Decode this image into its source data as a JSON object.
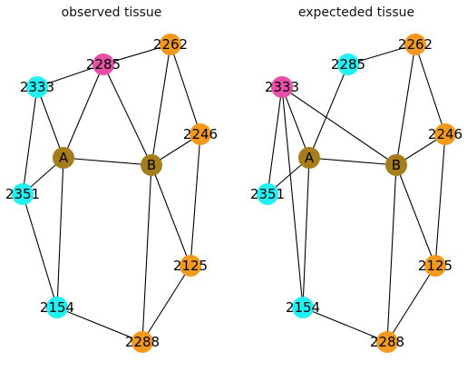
{
  "panels": [
    {
      "title": "observed tissue",
      "nodes": [
        {
          "id": "2262",
          "label": "2262",
          "color": "#f39a1e"
        },
        {
          "id": "2285",
          "label": "2285",
          "color": "#e84fa8"
        },
        {
          "id": "2333",
          "label": "2333",
          "color": "#22f0f3"
        },
        {
          "id": "2246",
          "label": "2246",
          "color": "#f39a1e"
        },
        {
          "id": "A",
          "label": "A",
          "color": "#a57d1b"
        },
        {
          "id": "B",
          "label": "B",
          "color": "#a57d1b"
        },
        {
          "id": "2351",
          "label": "2351",
          "color": "#22f0f3"
        },
        {
          "id": "2125",
          "label": "2125",
          "color": "#f39a1e"
        },
        {
          "id": "2154",
          "label": "2154",
          "color": "#22f0f3"
        },
        {
          "id": "2288",
          "label": "2288",
          "color": "#f39a1e"
        }
      ],
      "edges": [
        [
          "2285",
          "2262"
        ],
        [
          "2285",
          "2333"
        ],
        [
          "2285",
          "A"
        ],
        [
          "2285",
          "B"
        ],
        [
          "2333",
          "A"
        ],
        [
          "2333",
          "2351"
        ],
        [
          "2262",
          "B"
        ],
        [
          "2262",
          "2246"
        ],
        [
          "A",
          "B"
        ],
        [
          "A",
          "2351"
        ],
        [
          "A",
          "2154"
        ],
        [
          "B",
          "2246"
        ],
        [
          "B",
          "2125"
        ],
        [
          "B",
          "2288"
        ],
        [
          "2246",
          "2125"
        ],
        [
          "2351",
          "2154"
        ],
        [
          "2125",
          "2288"
        ],
        [
          "2154",
          "2288"
        ]
      ]
    },
    {
      "title": "expecteded tissue",
      "nodes": [
        {
          "id": "2262",
          "label": "2262",
          "color": "#f39a1e"
        },
        {
          "id": "2285",
          "label": "2285",
          "color": "#22f0f3"
        },
        {
          "id": "2333",
          "label": "2333",
          "color": "#e84fa8"
        },
        {
          "id": "2246",
          "label": "2246",
          "color": "#f39a1e"
        },
        {
          "id": "A",
          "label": "A",
          "color": "#a57d1b"
        },
        {
          "id": "B",
          "label": "B",
          "color": "#a57d1b"
        },
        {
          "id": "2351",
          "label": "2351",
          "color": "#22f0f3"
        },
        {
          "id": "2125",
          "label": "2125",
          "color": "#f39a1e"
        },
        {
          "id": "2154",
          "label": "2154",
          "color": "#22f0f3"
        },
        {
          "id": "2288",
          "label": "2288",
          "color": "#f39a1e"
        }
      ],
      "edges": [
        [
          "2285",
          "2262"
        ],
        [
          "2285",
          "A"
        ],
        [
          "2333",
          "B"
        ],
        [
          "2333",
          "A"
        ],
        [
          "2333",
          "2351"
        ],
        [
          "2333",
          "2154"
        ],
        [
          "2262",
          "B"
        ],
        [
          "2262",
          "2246"
        ],
        [
          "A",
          "B"
        ],
        [
          "A",
          "2351"
        ],
        [
          "A",
          "2154"
        ],
        [
          "B",
          "2246"
        ],
        [
          "B",
          "2125"
        ],
        [
          "B",
          "2288"
        ],
        [
          "2246",
          "2125"
        ],
        [
          "2154",
          "2288"
        ],
        [
          "2125",
          "2288"
        ]
      ]
    }
  ]
}
